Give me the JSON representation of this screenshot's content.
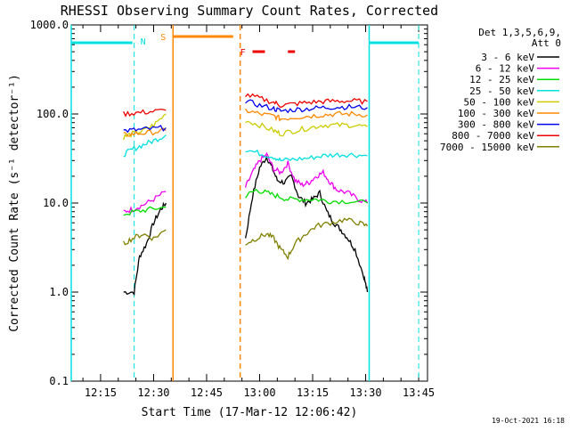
{
  "chart_data": {
    "type": "line",
    "title": "RHESSI Observing Summary Count Rates, Corrected",
    "xlabel": "Start Time (17-Mar-12 12:06:42)",
    "ylabel": "Corrected Count Rate (s⁻¹ detector⁻¹)",
    "x_ticks": [
      "12:15",
      "12:30",
      "12:45",
      "13:00",
      "13:15",
      "13:30",
      "13:45"
    ],
    "x_tick_minutes": [
      15,
      30,
      45,
      60,
      75,
      90,
      105
    ],
    "x_range_minutes": [
      6.7,
      107.5
    ],
    "y_scale": "log",
    "y_ticks": [
      "0.1",
      "1.0",
      "10.0",
      "100.0",
      "1000.0"
    ],
    "y_tick_values": [
      0.1,
      1,
      10,
      100,
      1000
    ],
    "ylim": [
      0.1,
      1000
    ],
    "legend_title": "Det 1,3,5,6,9,",
    "legend_subtitle": "Att 0",
    "legend_position": "top-right",
    "timestamp": "19-Oct-2021 16:18",
    "flags": {
      "night": {
        "label": "N",
        "color": "#00e0e0",
        "intervals": [
          [
            6.7,
            24.0
          ],
          [
            91.0,
            105.0
          ]
        ],
        "boundaries": [
          6.7,
          24.5,
          91.0,
          105.0
        ]
      },
      "saa": {
        "label": "S",
        "color": "#ff8800",
        "intervals": [
          [
            35.5,
            52.5
          ]
        ],
        "boundaries": [
          35.5,
          54.5
        ]
      },
      "flare": {
        "label": "F",
        "color": "#ee0000",
        "intervals": [
          [
            58.0,
            61.5
          ],
          [
            68.0,
            70.0
          ]
        ]
      }
    },
    "series": [
      {
        "name": "3 - 6 keV",
        "color": "#000000",
        "segments": [
          [
            [
              21.5,
              1.0
            ],
            [
              24.5,
              1.0
            ],
            [
              26.0,
              2.5
            ],
            [
              28.0,
              3.5
            ],
            [
              30.0,
              6.0
            ],
            [
              32.0,
              8.5
            ],
            [
              33.5,
              10.0
            ]
          ],
          [
            [
              56.0,
              4.0
            ],
            [
              58.0,
              12.0
            ],
            [
              60.0,
              25.0
            ],
            [
              62.0,
              33.0
            ],
            [
              63.5,
              25.0
            ],
            [
              65.0,
              18.0
            ],
            [
              67.0,
              17.0
            ],
            [
              69.0,
              20.0
            ],
            [
              71.0,
              12.0
            ],
            [
              73.0,
              10.0
            ],
            [
              75.0,
              11.0
            ],
            [
              77.0,
              13.0
            ],
            [
              79.0,
              8.0
            ],
            [
              81.0,
              6.0
            ],
            [
              83.0,
              5.0
            ],
            [
              85.0,
              4.0
            ],
            [
              87.0,
              3.0
            ],
            [
              89.5,
              1.5
            ],
            [
              90.5,
              1.0
            ]
          ]
        ]
      },
      {
        "name": "6 - 12 keV",
        "color": "#ee00ee",
        "segments": [
          [
            [
              21.5,
              8.0
            ],
            [
              24.0,
              8.5
            ],
            [
              27.0,
              9.5
            ],
            [
              30.0,
              11.0
            ],
            [
              33.5,
              13.5
            ]
          ],
          [
            [
              56.0,
              15.0
            ],
            [
              58.0,
              22.0
            ],
            [
              60.0,
              30.0
            ],
            [
              62.0,
              35.0
            ],
            [
              64.0,
              24.0
            ],
            [
              66.0,
              22.0
            ],
            [
              68.0,
              28.0
            ],
            [
              70.0,
              18.0
            ],
            [
              72.0,
              16.0
            ],
            [
              74.0,
              17.0
            ],
            [
              76.0,
              20.0
            ],
            [
              78.0,
              22.0
            ],
            [
              80.0,
              17.0
            ],
            [
              82.0,
              14.0
            ],
            [
              85.0,
              13.0
            ],
            [
              88.0,
              11.0
            ],
            [
              90.5,
              10.0
            ]
          ]
        ]
      },
      {
        "name": "12 - 25 keV",
        "color": "#00dd00",
        "segments": [
          [
            [
              21.5,
              7.5
            ],
            [
              25.0,
              8.0
            ],
            [
              29.0,
              8.5
            ],
            [
              33.5,
              9.0
            ]
          ],
          [
            [
              56.0,
              12.0
            ],
            [
              59.0,
              14.0
            ],
            [
              62.0,
              13.0
            ],
            [
              65.0,
              12.0
            ],
            [
              68.0,
              11.0
            ],
            [
              72.0,
              11.0
            ],
            [
              76.0,
              11.0
            ],
            [
              80.0,
              10.5
            ],
            [
              85.0,
              10.5
            ],
            [
              90.5,
              10.0
            ]
          ]
        ]
      },
      {
        "name": "25 - 50 keV",
        "color": "#00e0e0",
        "segments": [
          [
            [
              21.5,
              35.0
            ],
            [
              24.0,
              40.0
            ],
            [
              27.0,
              45.0
            ],
            [
              30.0,
              50.0
            ],
            [
              33.5,
              58.0
            ]
          ],
          [
            [
              56.0,
              40.0
            ],
            [
              60.0,
              36.0
            ],
            [
              64.0,
              33.0
            ],
            [
              66.0,
              30.0
            ],
            [
              70.0,
              31.0
            ],
            [
              74.0,
              32.0
            ],
            [
              78.0,
              34.0
            ],
            [
              82.0,
              35.0
            ],
            [
              86.0,
              35.0
            ],
            [
              90.5,
              34.0
            ]
          ]
        ]
      },
      {
        "name": "50 - 100 keV",
        "color": "#cccc00",
        "segments": [
          [
            [
              21.5,
              55.0
            ],
            [
              24.0,
              60.0
            ],
            [
              27.0,
              65.0
            ],
            [
              30.0,
              75.0
            ],
            [
              33.5,
              100.0
            ]
          ],
          [
            [
              56.0,
              85.0
            ],
            [
              60.0,
              75.0
            ],
            [
              64.0,
              65.0
            ],
            [
              66.0,
              60.0
            ],
            [
              70.0,
              65.0
            ],
            [
              74.0,
              70.0
            ],
            [
              78.0,
              75.0
            ],
            [
              82.0,
              75.0
            ],
            [
              86.0,
              75.0
            ],
            [
              90.5,
              72.0
            ]
          ]
        ]
      },
      {
        "name": "100 - 300 keV",
        "color": "#ff8800",
        "segments": [
          [
            [
              21.5,
              58.0
            ],
            [
              25.0,
              60.0
            ],
            [
              29.0,
              62.0
            ],
            [
              33.5,
              65.0
            ]
          ],
          [
            [
              56.0,
              110.0
            ],
            [
              60.0,
              100.0
            ],
            [
              64.0,
              95.0
            ],
            [
              66.0,
              88.0
            ],
            [
              70.0,
              92.0
            ],
            [
              74.0,
              95.0
            ],
            [
              78.0,
              98.0
            ],
            [
              82.0,
              100.0
            ],
            [
              86.0,
              100.0
            ],
            [
              90.5,
              98.0
            ]
          ]
        ]
      },
      {
        "name": "300 - 800 keV",
        "color": "#0000ee",
        "segments": [
          [
            [
              21.5,
              65.0
            ],
            [
              25.0,
              66.0
            ],
            [
              29.0,
              68.0
            ],
            [
              33.5,
              70.0
            ]
          ],
          [
            [
              56.0,
              140.0
            ],
            [
              60.0,
              125.0
            ],
            [
              64.0,
              115.0
            ],
            [
              66.0,
              108.0
            ],
            [
              70.0,
              112.0
            ],
            [
              74.0,
              115.0
            ],
            [
              78.0,
              118.0
            ],
            [
              82.0,
              120.0
            ],
            [
              86.0,
              120.0
            ],
            [
              90.5,
              118.0
            ]
          ]
        ]
      },
      {
        "name": "800 - 7000 keV",
        "color": "#ee0000",
        "segments": [
          [
            [
              21.5,
              100.0
            ],
            [
              25.0,
              103.0
            ],
            [
              29.0,
              106.0
            ],
            [
              33.5,
              110.0
            ]
          ],
          [
            [
              56.0,
              165.0
            ],
            [
              60.0,
              150.0
            ],
            [
              64.0,
              135.0
            ],
            [
              66.0,
              125.0
            ],
            [
              70.0,
              130.0
            ],
            [
              74.0,
              135.0
            ],
            [
              78.0,
              138.0
            ],
            [
              82.0,
              140.0
            ],
            [
              86.0,
              140.0
            ],
            [
              90.5,
              138.0
            ]
          ]
        ]
      },
      {
        "name": "7000 - 15000 keV",
        "color": "#808000",
        "segments": [
          [
            [
              21.5,
              3.5
            ],
            [
              24.0,
              4.0
            ],
            [
              27.0,
              4.5
            ],
            [
              30.0,
              4.0
            ],
            [
              33.5,
              5.0
            ]
          ],
          [
            [
              56.0,
              3.5
            ],
            [
              59.0,
              4.0
            ],
            [
              62.0,
              4.5
            ],
            [
              64.0,
              4.0
            ],
            [
              66.0,
              3.0
            ],
            [
              68.0,
              2.5
            ],
            [
              70.0,
              3.5
            ],
            [
              73.0,
              4.5
            ],
            [
              76.0,
              5.5
            ],
            [
              80.0,
              6.0
            ],
            [
              84.0,
              6.5
            ],
            [
              88.0,
              6.0
            ],
            [
              90.5,
              5.5
            ]
          ]
        ]
      }
    ]
  }
}
